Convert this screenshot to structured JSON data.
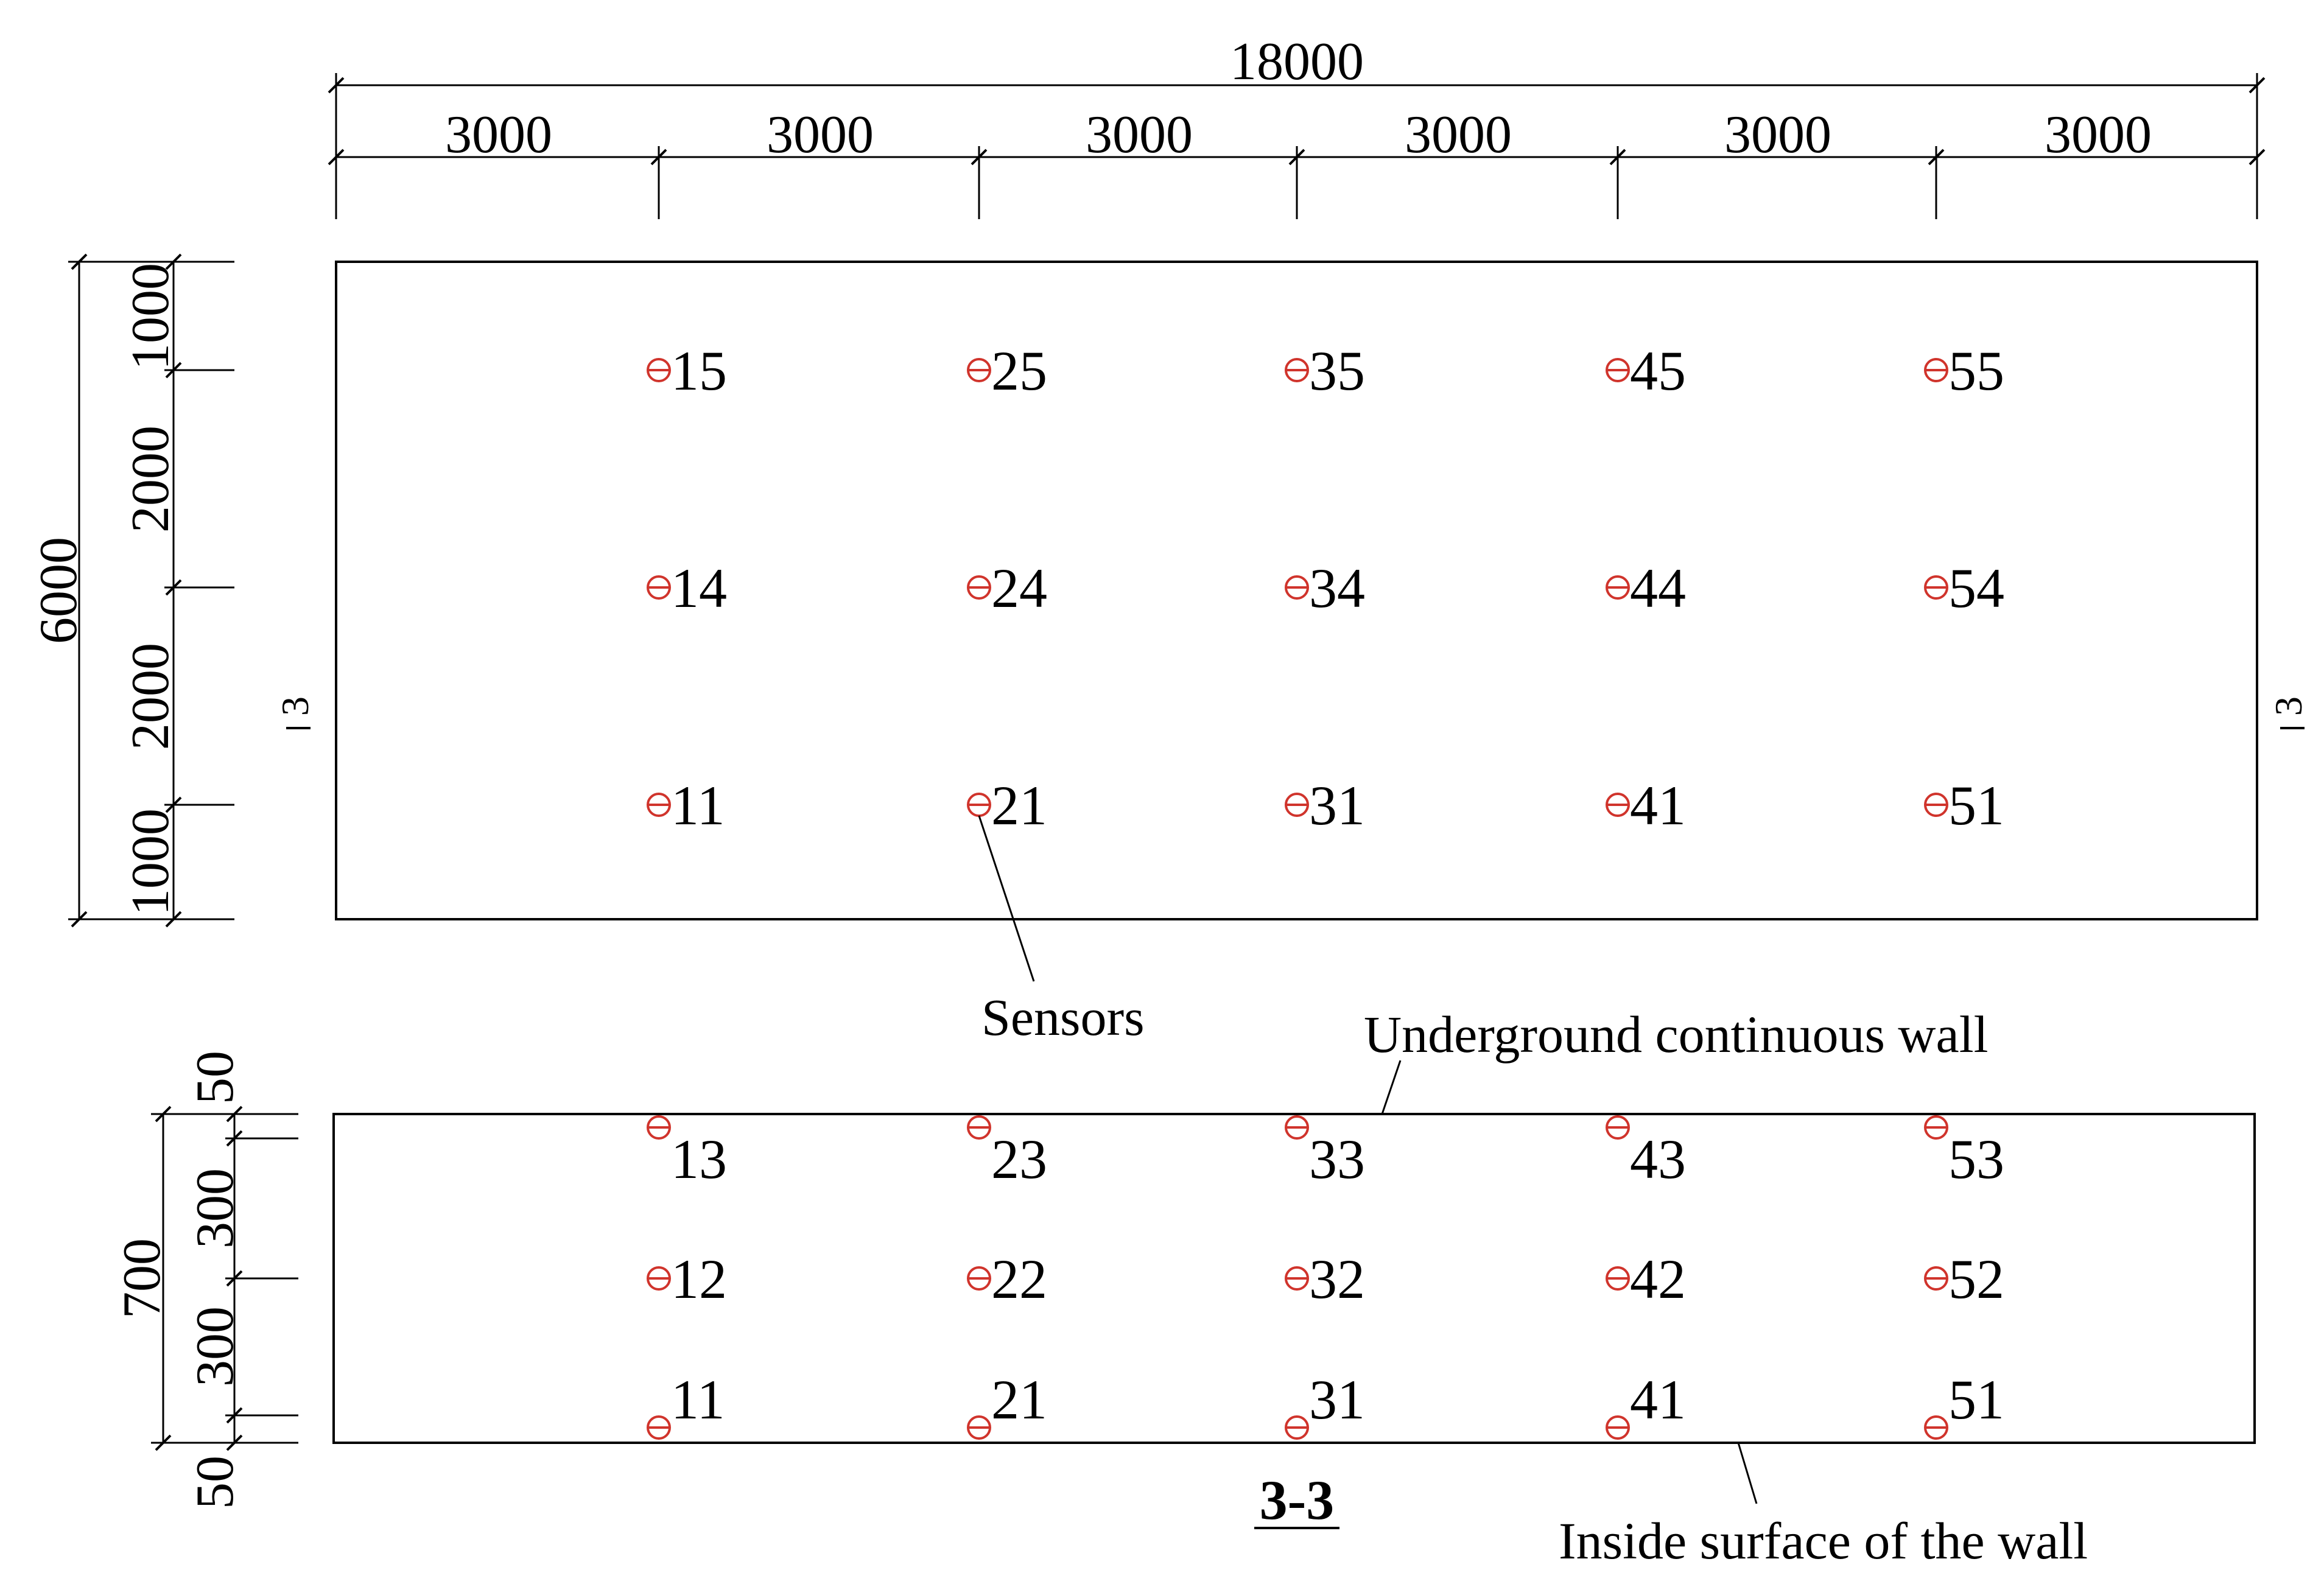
{
  "top_dims": {
    "total": "18000",
    "segments": [
      "3000",
      "3000",
      "3000",
      "3000",
      "3000",
      "3000"
    ]
  },
  "left_dims": {
    "total": "6000",
    "segments": [
      "1000",
      "2000",
      "2000",
      "1000"
    ]
  },
  "section_marks": {
    "left": "3",
    "right": "3"
  },
  "plan_sensors": {
    "row_top": [
      "15",
      "25",
      "35",
      "45",
      "55"
    ],
    "row_mid": [
      "14",
      "24",
      "34",
      "44",
      "54"
    ],
    "row_bot": [
      "11",
      "21",
      "31",
      "41",
      "51"
    ]
  },
  "section_dims": {
    "total": "700",
    "segments": [
      "50",
      "300",
      "300",
      "50"
    ]
  },
  "section_sensors": {
    "row_top": [
      "13",
      "23",
      "33",
      "43",
      "53"
    ],
    "row_mid": [
      "12",
      "22",
      "32",
      "42",
      "52"
    ],
    "row_bot": [
      "11",
      "21",
      "31",
      "41",
      "51"
    ]
  },
  "labels": {
    "sensors": "Sensors",
    "wall": "Underground continuous wall",
    "inside_surface": "Inside surface of the wall",
    "section_title": "3-3"
  },
  "colors": {
    "sensor": "#d0342c",
    "line": "#000000"
  }
}
